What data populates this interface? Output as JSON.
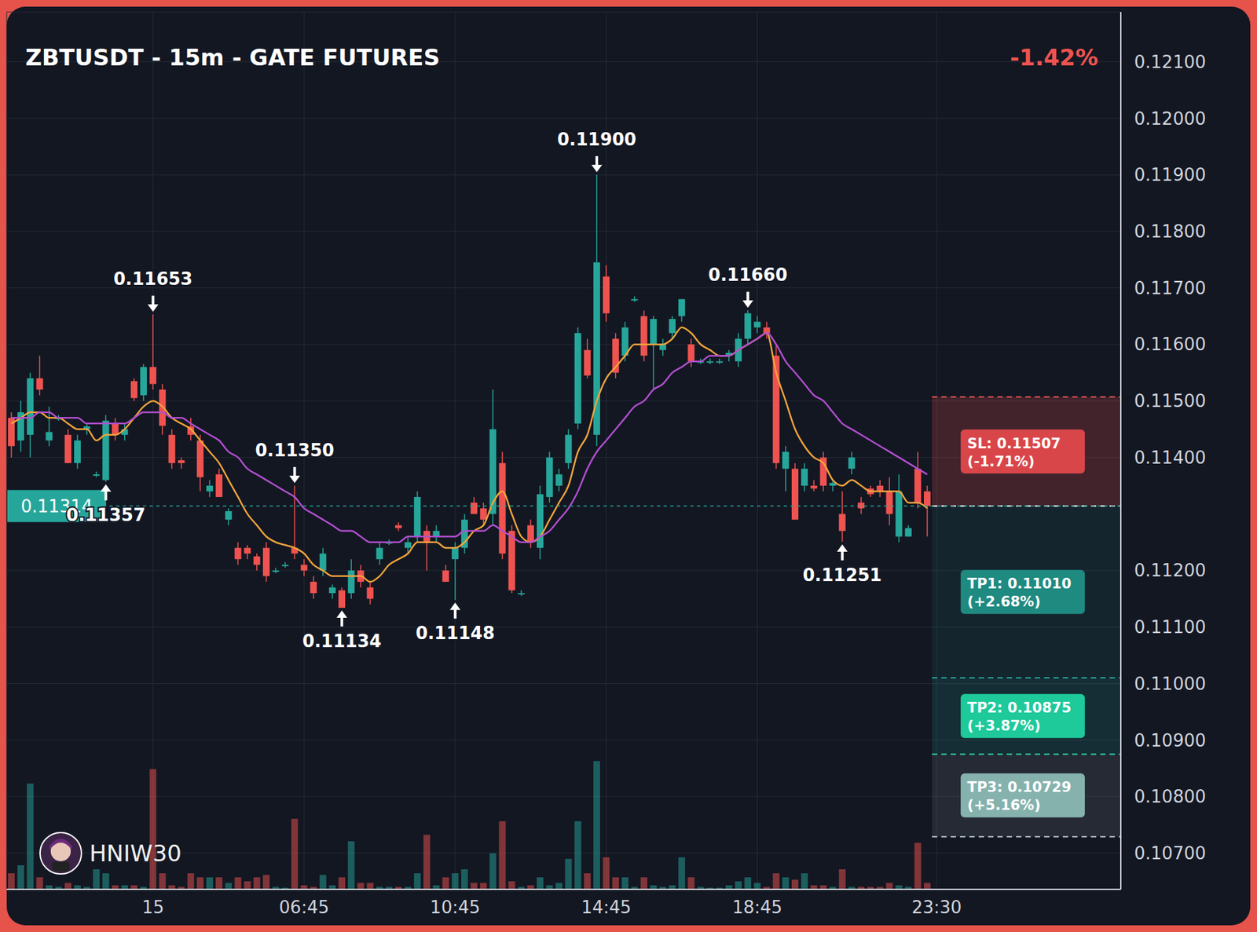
{
  "chart_data": {
    "type": "candlestick",
    "title": "ZBTUSDT - 15m - GATE FUTURES",
    "change": "-1.42%",
    "watermark": "HNIW30",
    "grid": true,
    "categories": [
      null,
      null,
      null,
      null,
      null,
      null,
      null,
      null,
      null,
      null,
      null,
      null,
      null,
      null,
      null,
      "15",
      null,
      null,
      null,
      null,
      null,
      null,
      null,
      null,
      null,
      null,
      null,
      null,
      null,
      null,
      null,
      "06:45",
      null,
      null,
      null,
      null,
      null,
      null,
      null,
      null,
      null,
      null,
      null,
      null,
      null,
      null,
      null,
      "10:45",
      null,
      null,
      null,
      null,
      null,
      null,
      null,
      null,
      null,
      null,
      null,
      null,
      null,
      null,
      null,
      "14:45",
      null,
      null,
      null,
      null,
      null,
      null,
      null,
      null,
      null,
      null,
      null,
      null,
      null,
      null,
      null,
      "18:45",
      null,
      null,
      null,
      null,
      null,
      null,
      null,
      null,
      null,
      null,
      null,
      null,
      null,
      null,
      null,
      null,
      null,
      null,
      "23:30",
      null,
      null,
      null,
      null,
      null,
      null,
      null,
      null,
      null,
      null,
      null,
      null,
      null,
      null,
      null,
      null,
      null,
      null,
      null
    ],
    "open": [
      0.1147,
      0.1143,
      0.1144,
      0.1154,
      0.1143,
      0.1147,
      0.1144,
      0.1139,
      0.1145,
      0.1137,
      0.1136,
      0.1146,
      0.1144,
      0.11535,
      0.1151,
      0.1156,
      0.1152,
      0.1144,
      0.11395,
      0.11455,
      0.1143,
      0.1134,
      0.1137,
      0.1129,
      0.1124,
      0.1124,
      0.11225,
      0.1124,
      0.112,
      0.1121,
      0.1124,
      0.1121,
      0.1118,
      0.112,
      0.1116,
      0.11165,
      0.1116,
      0.112,
      0.1117,
      0.1122,
      0.1125,
      0.1128,
      0.1124,
      0.1126,
      0.1127,
      0.1126,
      0.112,
      0.1122,
      0.1124,
      0.1132,
      0.1131,
      0.113,
      0.1139,
      0.1127,
      0.1116,
      0.1128,
      0.1124,
      0.1133,
      0.1135,
      0.1139,
      0.1146,
      0.1159,
      0.1144,
      0.1172,
      0.1161,
      0.1158,
      0.1168,
      0.1165,
      0.116,
      0.1159,
      0.1162,
      0.1165,
      0.116,
      0.1157,
      0.1157,
      0.1157,
      0.1158,
      0.1157,
      0.1161,
      0.1163,
      0.1163,
      0.1158,
      0.1138,
      0.1138,
      0.1135,
      0.1135,
      0.114,
      0.1135,
      0.113,
      0.1138,
      0.1132,
      0.11345,
      0.1135,
      0.1134,
      0.1126,
      0.1126,
      0.1138,
      0.1134,
      null,
      null,
      null,
      null,
      null,
      null,
      null,
      null,
      null,
      null,
      null,
      null,
      null,
      null,
      null,
      null,
      null,
      null,
      null,
      null
    ],
    "high": [
      0.1148,
      0.115,
      0.1155,
      0.1158,
      0.1149,
      0.11475,
      0.1145,
      0.1144,
      0.1146,
      0.11375,
      0.11475,
      0.1147,
      0.1146,
      0.1154,
      0.11565,
      0.11653,
      0.1153,
      0.1145,
      0.114,
      0.1147,
      0.1144,
      0.1136,
      0.1138,
      0.1131,
      0.1125,
      0.11245,
      0.1123,
      0.1125,
      0.11205,
      0.11215,
      0.1135,
      0.1122,
      0.1119,
      0.1124,
      0.11175,
      0.1117,
      0.1122,
      0.1121,
      0.1118,
      0.1125,
      0.11255,
      0.11285,
      0.1126,
      0.1134,
      0.1128,
      0.1128,
      0.1121,
      0.1125,
      0.113,
      0.1133,
      0.1132,
      0.1152,
      0.1141,
      0.1128,
      0.11165,
      0.1129,
      0.1135,
      0.1141,
      0.1138,
      0.1145,
      0.1163,
      0.1161,
      0.119,
      0.1174,
      0.1162,
      0.1164,
      0.11685,
      0.1166,
      0.1165,
      0.1161,
      0.1165,
      0.1168,
      0.1161,
      0.11575,
      0.11575,
      0.11575,
      0.1159,
      0.1162,
      0.1166,
      0.1165,
      0.1164,
      0.116,
      0.1142,
      0.1139,
      0.1139,
      0.1136,
      0.1141,
      0.1136,
      0.1134,
      0.1141,
      0.1133,
      0.1135,
      0.1136,
      0.11365,
      0.1137,
      0.1128,
      0.1141,
      0.1135,
      null,
      null,
      null,
      null,
      null,
      null,
      null,
      null,
      null,
      null,
      null,
      null,
      null,
      null,
      null,
      null,
      null,
      null,
      null,
      null
    ],
    "low": [
      0.114,
      0.1141,
      0.114,
      0.1151,
      0.1142,
      0.11465,
      0.1139,
      0.1138,
      0.1144,
      0.11365,
      0.11357,
      0.1143,
      0.1143,
      0.115,
      0.115,
      0.1152,
      0.1144,
      0.1138,
      0.1138,
      0.1143,
      0.1134,
      0.1133,
      0.1133,
      0.1128,
      0.1121,
      0.1122,
      0.112,
      0.1118,
      0.11195,
      0.11205,
      0.1122,
      0.1119,
      0.1115,
      0.1119,
      0.1115,
      0.11134,
      0.1115,
      0.1117,
      0.1114,
      0.1121,
      0.11245,
      0.1127,
      0.1123,
      0.1125,
      0.112,
      0.1125,
      0.1118,
      0.11148,
      0.1123,
      0.113,
      0.1128,
      0.1128,
      0.1122,
      0.1116,
      0.11155,
      0.1124,
      0.1122,
      0.1132,
      0.1134,
      0.1138,
      0.1145,
      0.1154,
      0.1142,
      0.1164,
      0.1154,
      0.1157,
      0.11675,
      0.1157,
      0.1152,
      0.1158,
      0.1161,
      0.1164,
      0.1156,
      0.11565,
      0.11565,
      0.11565,
      0.1157,
      0.1156,
      0.116,
      0.1162,
      0.1161,
      0.1138,
      0.1134,
      0.1129,
      0.1134,
      0.1134,
      0.1134,
      0.1134,
      0.11251,
      0.1137,
      0.113,
      0.1133,
      0.1133,
      0.1128,
      0.1125,
      0.1126,
      0.1131,
      0.1126,
      null,
      null,
      null,
      null,
      null,
      null,
      null,
      null,
      null,
      null,
      null,
      null,
      null,
      null,
      null,
      null,
      null,
      null,
      null,
      null
    ],
    "close": [
      0.1142,
      0.1148,
      0.1154,
      0.1152,
      0.11445,
      0.1147,
      0.1139,
      0.1143,
      0.11455,
      0.1137,
      0.11465,
      0.1144,
      0.1145,
      0.11505,
      0.1156,
      0.1153,
      0.11456,
      0.1139,
      0.1139,
      0.1144,
      0.11365,
      0.1135,
      0.1133,
      0.11305,
      0.1122,
      0.1123,
      0.1121,
      0.1119,
      0.112,
      0.1121,
      0.1123,
      0.112,
      0.1116,
      0.1123,
      0.1117,
      0.11134,
      0.112,
      0.1118,
      0.1115,
      0.1124,
      0.1125,
      0.11275,
      0.1125,
      0.1133,
      0.1125,
      0.1127,
      0.1118,
      0.1124,
      0.1129,
      0.113,
      0.1129,
      0.1145,
      0.1123,
      0.11165,
      0.1116,
      0.1125,
      0.11335,
      0.114,
      0.1137,
      0.1144,
      0.1162,
      0.11545,
      0.11745,
      0.11655,
      0.1155,
      0.1163,
      0.1168,
      0.1158,
      0.11645,
      0.116,
      0.11645,
      0.1168,
      0.1157,
      0.1157,
      0.1157,
      0.1157,
      0.11585,
      0.1161,
      0.11655,
      0.1164,
      0.1162,
      0.1139,
      0.1141,
      0.1129,
      0.1138,
      0.11345,
      0.1135,
      0.11355,
      0.1127,
      0.114,
      0.1131,
      0.11335,
      0.1134,
      0.113,
      0.1134,
      0.11275,
      0.1132,
      0.11314,
      null,
      null,
      null,
      null,
      null,
      null,
      null,
      null,
      null,
      null,
      null,
      null,
      null,
      null,
      null,
      null,
      null,
      null,
      null,
      null
    ],
    "volume": [
      20,
      30,
      132,
      15,
      5,
      3,
      8,
      5,
      3,
      25,
      20,
      5,
      5,
      5,
      3,
      150,
      20,
      5,
      3,
      20,
      15,
      15,
      15,
      8,
      15,
      10,
      15,
      18,
      3,
      2,
      88,
      5,
      3,
      18,
      5,
      15,
      60,
      8,
      8,
      3,
      3,
      3,
      3,
      20,
      68,
      5,
      15,
      20,
      25,
      8,
      8,
      45,
      85,
      10,
      3,
      5,
      15,
      5,
      8,
      38,
      85,
      20,
      160,
      40,
      15,
      15,
      3,
      15,
      5,
      3,
      5,
      40,
      15,
      3,
      2,
      2,
      5,
      10,
      15,
      8,
      3,
      20,
      15,
      12,
      20,
      5,
      5,
      3,
      25,
      3,
      3,
      3,
      3,
      8,
      5,
      3,
      58,
      8,
      null,
      null,
      null,
      null,
      null,
      null,
      null,
      null,
      null,
      null,
      null,
      null,
      null,
      null,
      null,
      null,
      null,
      null,
      null,
      null
    ],
    "y2lim": [
      0,
      1095
    ],
    "series": [
      {
        "type": "line",
        "color": "#f2a43a",
        "values": [
          0.1146,
          0.1147,
          0.1148,
          0.1148,
          0.1147,
          0.1147,
          0.1146,
          0.1145,
          0.1145,
          0.1143,
          0.1144,
          0.1144,
          0.1145,
          0.1147,
          0.1149,
          0.115,
          0.1149,
          0.1147,
          0.1146,
          0.1145,
          0.1143,
          0.1141,
          0.1139,
          0.1136,
          0.1133,
          0.113,
          0.1128,
          0.1126,
          0.1125,
          0.11245,
          0.1124,
          0.1123,
          0.1121,
          0.112,
          0.1119,
          0.1119,
          0.1119,
          0.1119,
          0.1118,
          0.1119,
          0.1121,
          0.1122,
          0.1123,
          0.1125,
          0.1125,
          0.1125,
          0.1124,
          0.1124,
          0.1125,
          0.1127,
          0.1128,
          0.1132,
          0.1134,
          0.113,
          0.1126,
          0.1125,
          0.1126,
          0.1129,
          0.1132,
          0.1135,
          0.1141,
          0.1144,
          0.115,
          0.1154,
          0.1156,
          0.1158,
          0.116,
          0.116,
          0.116,
          0.116,
          0.1161,
          0.1163,
          0.1162,
          0.116,
          0.1159,
          0.1158,
          0.1158,
          0.1159,
          0.116,
          0.1161,
          0.1162,
          0.1155,
          0.115,
          0.1145,
          0.1142,
          0.114,
          0.1139,
          0.1136,
          0.1135,
          0.1136,
          0.1135,
          0.1134,
          0.1134,
          0.1134,
          0.1134,
          0.1132,
          0.1132,
          0.1131,
          null,
          null,
          null,
          null,
          null,
          null,
          null,
          null,
          null,
          null,
          null,
          null,
          null,
          null,
          null,
          null,
          null,
          null,
          null,
          null
        ]
      },
      {
        "type": "line",
        "color": "#b24fd0",
        "values": [
          0.1147,
          0.1147,
          0.1147,
          0.1148,
          0.1148,
          0.1147,
          0.1147,
          0.1147,
          0.1146,
          0.1146,
          0.1146,
          0.1146,
          0.1146,
          0.1147,
          0.1148,
          0.1148,
          0.1148,
          0.1147,
          0.1147,
          0.1146,
          0.1145,
          0.1144,
          0.1143,
          0.1141,
          0.114,
          0.1138,
          0.1137,
          0.1136,
          0.1135,
          0.1134,
          0.1133,
          0.1131,
          0.113,
          0.1129,
          0.1128,
          0.1127,
          0.1127,
          0.1126,
          0.1125,
          0.1125,
          0.1125,
          0.1125,
          0.1126,
          0.1126,
          0.1126,
          0.1126,
          0.1126,
          0.1126,
          0.1127,
          0.1127,
          0.1127,
          0.1128,
          0.1127,
          0.1126,
          0.1125,
          0.1125,
          0.1126,
          0.1127,
          0.1129,
          0.1131,
          0.1134,
          0.1138,
          0.1141,
          0.1143,
          0.1145,
          0.1147,
          0.1149,
          0.115,
          0.1152,
          0.1153,
          0.1155,
          0.1156,
          0.1157,
          0.1157,
          0.1158,
          0.1158,
          0.1158,
          0.1159,
          0.116,
          0.1161,
          0.1162,
          0.116,
          0.1157,
          0.1155,
          0.1153,
          0.1151,
          0.115,
          0.1148,
          0.1146,
          0.1145,
          0.1144,
          0.1143,
          0.1142,
          0.1141,
          0.114,
          0.1139,
          0.1138,
          0.1137,
          null,
          null,
          null,
          null,
          null,
          null,
          null,
          null,
          null,
          null,
          null,
          null,
          null,
          null,
          null,
          null,
          null,
          null,
          null,
          null
        ]
      }
    ],
    "ylim": [
      0.10636,
      0.12188
    ],
    "yticks": [
      {
        "value": 0.107,
        "label": "0.10700"
      },
      {
        "value": 0.108,
        "label": "0.10800"
      },
      {
        "value": 0.109,
        "label": "0.10900"
      },
      {
        "value": 0.11,
        "label": "0.11000"
      },
      {
        "value": 0.111,
        "label": "0.11100"
      },
      {
        "value": 0.112,
        "label": "0.11200"
      },
      {
        "value": 0.114,
        "label": "0.11400"
      },
      {
        "value": 0.115,
        "label": "0.11500"
      },
      {
        "value": 0.116,
        "label": "0.11600"
      },
      {
        "value": 0.117,
        "label": "0.11700"
      },
      {
        "value": 0.118,
        "label": "0.11800"
      },
      {
        "value": 0.119,
        "label": "0.11900"
      },
      {
        "value": 0.12,
        "label": "0.12000"
      },
      {
        "value": 0.121,
        "label": "0.12100"
      }
    ],
    "last_price": {
      "value": 0.11314,
      "label": "0.11314"
    },
    "levels": [
      {
        "label": "SL: 0.11507",
        "change": "(-1.71%)",
        "value": 0.11507
      },
      {
        "label": "TP1: 0.11010",
        "change": "(+2.68%)",
        "value": 0.1101
      },
      {
        "label": "TP2: 0.10875",
        "change": "(+3.87%)",
        "value": 0.10875
      },
      {
        "label": "TP3: 0.10729",
        "change": "(+5.16%)",
        "value": 0.10729
      }
    ],
    "annotations": [
      {
        "x": 15,
        "value": 0.11653,
        "label": "0.11653"
      },
      {
        "x": 10,
        "value": 0.11357,
        "label": "0.11357"
      },
      {
        "x": 30,
        "value": 0.1135,
        "label": "0.11350"
      },
      {
        "x": 35,
        "value": 0.11134,
        "label": "0.11134"
      },
      {
        "x": 47,
        "value": 0.11148,
        "label": "0.11148"
      },
      {
        "x": 62,
        "value": 0.119,
        "label": "0.11900"
      },
      {
        "x": 78,
        "value": 0.1166,
        "label": "0.11660"
      },
      {
        "x": 88,
        "value": 0.11251,
        "label": "0.11251"
      }
    ]
  }
}
